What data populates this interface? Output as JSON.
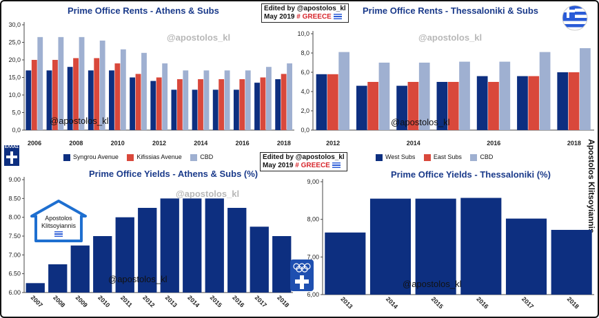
{
  "watermark": "@apostolos_kl",
  "edited_note": {
    "line1": "Edited by @apostolos_kl",
    "line2_a": "May 2019",
    "line2_b": "# GREECE"
  },
  "author": "Apostolos Klitsoyiannis",
  "logo_text": {
    "line1": "Apostolos",
    "line2": "Klitsoyiannis"
  },
  "badge_text": "ΕΛΛΑΣ",
  "colors": {
    "navy": "#0d2f80",
    "red": "#d9483b",
    "light": "#9fb0d1",
    "title": "#1a3a8a"
  },
  "chart_data": [
    {
      "type": "bar",
      "title": "Prime Office Rents - Athens & Subs",
      "categories": [
        "2006",
        "2007",
        "2008",
        "2009",
        "2010",
        "2011",
        "2012",
        "2013",
        "2014",
        "2015",
        "2016",
        "2017",
        "2018"
      ],
      "x_tick_labels": [
        "2006",
        "2008",
        "2010",
        "2012",
        "2014",
        "2016",
        "2018"
      ],
      "y_ticks": [
        "0,0",
        "5,0",
        "10,0",
        "15,0",
        "20,0",
        "25,0",
        "30,0"
      ],
      "ylim": [
        0,
        30
      ],
      "series": [
        {
          "name": "Syngrou Avenue",
          "color": "#0d2f80",
          "values": [
            17,
            17,
            18,
            17,
            17,
            15,
            14,
            11.5,
            11.5,
            11.5,
            11.5,
            13.5,
            14.5
          ]
        },
        {
          "name": "Kifissias Avenue",
          "color": "#d9483b",
          "values": [
            20,
            20,
            20.5,
            20.5,
            19,
            16,
            15,
            14.5,
            14.5,
            14.5,
            14.5,
            15,
            16
          ]
        },
        {
          "name": "CBD",
          "color": "#9fb0d1",
          "values": [
            26.5,
            26.5,
            26.5,
            25.5,
            23,
            22,
            19,
            17,
            17,
            17,
            17,
            18,
            19
          ]
        }
      ],
      "legend": "bottom"
    },
    {
      "type": "bar",
      "title": "Prime Office Rents - Thessaloniki & Subs",
      "categories": [
        "2012",
        "2013",
        "2014",
        "2015",
        "2016",
        "2017",
        "2018"
      ],
      "x_tick_labels": [
        "2012",
        "2014",
        "2016",
        "2018"
      ],
      "y_ticks": [
        "0,0",
        "2,0",
        "4,0",
        "6,0",
        "8,0",
        "10,0"
      ],
      "ylim": [
        0,
        10
      ],
      "series": [
        {
          "name": "West Subs",
          "color": "#0d2f80",
          "values": [
            5.8,
            4.6,
            4.6,
            5,
            5.6,
            5.6,
            6
          ]
        },
        {
          "name": "East Subs",
          "color": "#d9483b",
          "values": [
            5.8,
            5,
            5,
            5,
            5,
            5.6,
            6
          ]
        },
        {
          "name": "CBD",
          "color": "#9fb0d1",
          "values": [
            8.1,
            7,
            7,
            7.1,
            7.1,
            8.1,
            8.5
          ]
        }
      ],
      "legend": "bottom"
    },
    {
      "type": "bar",
      "title": "Prime Office Yields - Athens & Subs (%)",
      "categories": [
        "2007",
        "2008",
        "2009",
        "2010",
        "2011",
        "2012",
        "2013",
        "2014",
        "2015",
        "2016",
        "2017",
        "2018"
      ],
      "y_ticks": [
        "6.00",
        "6.50",
        "7.00",
        "7.50",
        "8.00",
        "8.50",
        "9.00"
      ],
      "ylim": [
        6,
        9
      ],
      "series": [
        {
          "name": "",
          "color": "#0d2f80",
          "values": [
            6.25,
            6.75,
            7.25,
            7.5,
            8,
            8.25,
            8.5,
            8.5,
            8.5,
            8.25,
            7.75,
            7.5
          ]
        }
      ]
    },
    {
      "type": "bar",
      "title": "Prime Office Yields - Thessaloniki (%)",
      "categories": [
        "2013",
        "2014",
        "2015",
        "2016",
        "2017",
        "2018"
      ],
      "y_ticks": [
        "6,00",
        "7,00",
        "8,00",
        "9,00"
      ],
      "ylim": [
        6,
        9
      ],
      "series": [
        {
          "name": "",
          "color": "#0d2f80",
          "values": [
            7.65,
            8.55,
            8.55,
            8.57,
            8.02,
            7.72
          ]
        }
      ]
    }
  ]
}
